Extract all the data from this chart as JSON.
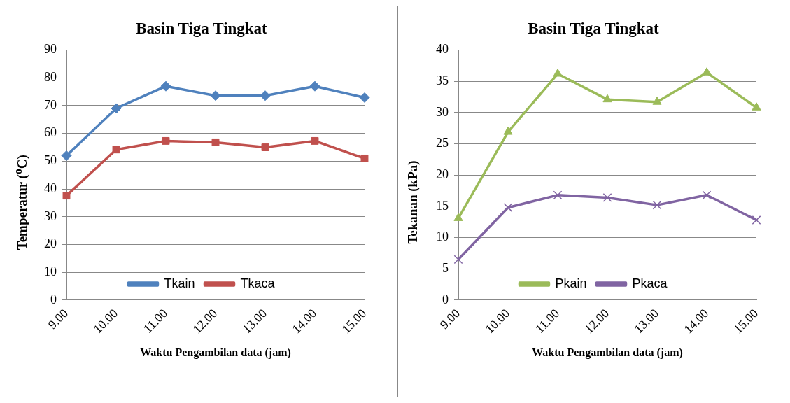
{
  "chart_data": [
    {
      "type": "line",
      "title": "Basin Tiga Tingkat",
      "xlabel": "Waktu Pengambilan data (jam)",
      "ylabel": "Temperatur ($^{o}$C)",
      "categories": [
        "9.00",
        "10.00",
        "11.00",
        "12.00",
        "13.00",
        "14.00",
        "15.00"
      ],
      "ylim": [
        0,
        90
      ],
      "yticks": [
        0,
        10,
        20,
        30,
        40,
        50,
        60,
        70,
        80,
        90
      ],
      "grid": "y",
      "legend": "bottom",
      "series": [
        {
          "name": "Tkain",
          "color": "#4f81bd",
          "marker": "diamond",
          "values": [
            52,
            69,
            77,
            73.6,
            73.6,
            77,
            72.9
          ]
        },
        {
          "name": "Tkaca",
          "color": "#c0504d",
          "marker": "square",
          "values": [
            37.6,
            54.2,
            57.3,
            56.8,
            55,
            57.3,
            51
          ]
        }
      ]
    },
    {
      "type": "line",
      "title": "Basin Tiga Tingkat",
      "xlabel": "Waktu Pengambilan data (jam)",
      "ylabel": "Tekanan (kPa)",
      "categories": [
        "9.00",
        "10.00",
        "11.00",
        "12.00",
        "13.00",
        "14.00",
        "15.00"
      ],
      "ylim": [
        0,
        40
      ],
      "yticks": [
        0,
        5,
        10,
        15,
        20,
        25,
        30,
        35,
        40
      ],
      "grid": "y",
      "legend": "bottom",
      "series": [
        {
          "name": "Pkain",
          "color": "#9bbb59",
          "marker": "triangle",
          "values": [
            13.1,
            26.9,
            36.2,
            32.1,
            31.7,
            36.4,
            30.8
          ]
        },
        {
          "name": "Pkaca",
          "color": "#8064a2",
          "marker": "cross",
          "values": [
            6.5,
            14.8,
            16.8,
            16.4,
            15.2,
            16.8,
            12.8
          ]
        }
      ]
    }
  ]
}
